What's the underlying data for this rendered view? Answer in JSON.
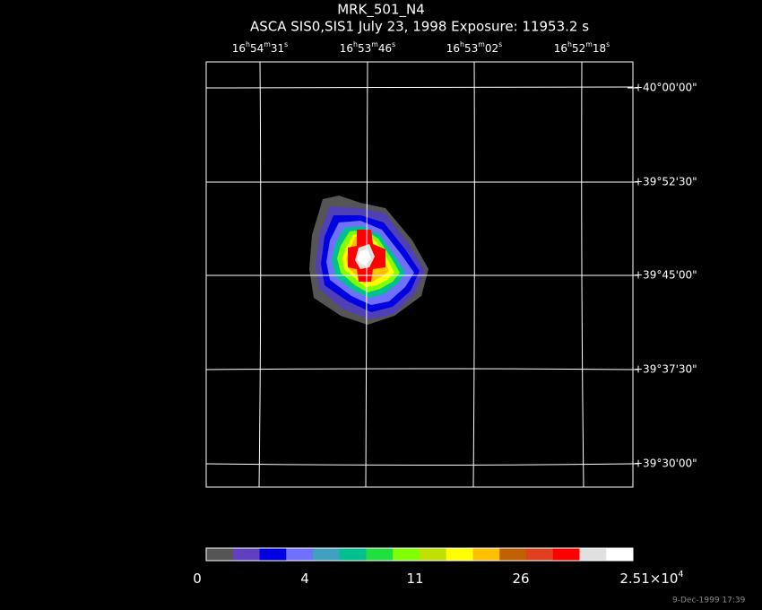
{
  "title": "MRK_501_N4",
  "subtitle": "ASCA SIS0,SIS1 July 23, 1998 Exposure: 11953.2 s",
  "ra_labels": [
    [
      {
        "text": "16"
      },
      {
        "text": "h",
        "sup": true
      },
      {
        "text": "54"
      },
      {
        "text": "m",
        "sup": true
      },
      {
        "text": "31"
      },
      {
        "text": "s",
        "sup": true
      }
    ],
    [
      {
        "text": "16"
      },
      {
        "text": "h",
        "sup": true
      },
      {
        "text": "53"
      },
      {
        "text": "m",
        "sup": true
      },
      {
        "text": "46"
      },
      {
        "text": "s",
        "sup": true
      }
    ],
    [
      {
        "text": "16"
      },
      {
        "text": "h",
        "sup": true
      },
      {
        "text": "53"
      },
      {
        "text": "m",
        "sup": true
      },
      {
        "text": "02"
      },
      {
        "text": "s",
        "sup": true
      }
    ],
    [
      {
        "text": "16"
      },
      {
        "text": "h",
        "sup": true
      },
      {
        "text": "52"
      },
      {
        "text": "m",
        "sup": true
      },
      {
        "text": "18"
      },
      {
        "text": "s",
        "sup": true
      }
    ]
  ],
  "dec_labels": [
    "+40°00'00\"",
    "+39°52'30\"",
    "+39°45'00\"",
    "+39°37'30\"",
    "+39°30'00\""
  ],
  "colorbar": {
    "colors": [
      "#555555",
      "#6040c0",
      "#0000e0",
      "#7070ff",
      "#40a0c0",
      "#00c090",
      "#20e040",
      "#80ff00",
      "#c0e000",
      "#ffff00",
      "#ffc000",
      "#c06000",
      "#e04020",
      "#ff0000",
      "#e0e0e0",
      "#ffffff"
    ],
    "labels": [
      [
        {
          "text": "0"
        }
      ],
      [
        {
          "text": "4"
        }
      ],
      [
        {
          "text": "11"
        }
      ],
      [
        {
          "text": "26"
        }
      ],
      [
        {
          "text": "2.51×10"
        },
        {
          "text": "4",
          "sup": true
        }
      ]
    ]
  },
  "footer": "9-Dec-1999 17:39"
}
